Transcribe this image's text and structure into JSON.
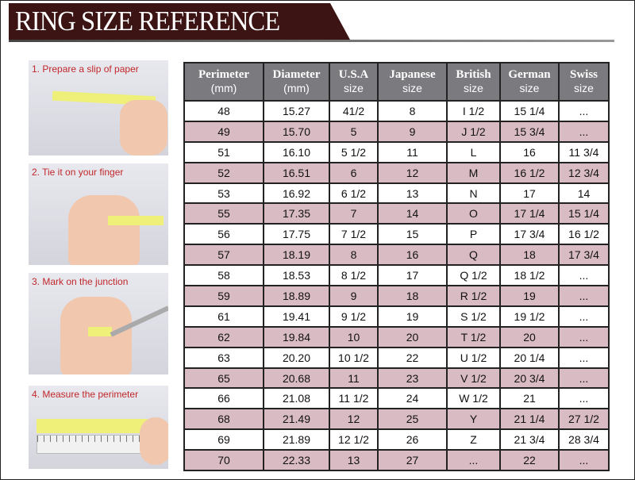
{
  "title": "RING SIZE REFERENCE",
  "steps": [
    "1. Prepare a slip of paper",
    "2. Tie it on your finger",
    "3. Mark on the junction",
    "4. Measure the perimeter"
  ],
  "headers": [
    [
      "Perimeter",
      "(mm)"
    ],
    [
      "Diameter",
      "(mm)"
    ],
    [
      "U.S.A",
      "size"
    ],
    [
      "Japanese",
      "size"
    ],
    [
      "British",
      "size"
    ],
    [
      "German",
      "size"
    ],
    [
      "Swiss",
      "size"
    ]
  ],
  "rows": [
    [
      "48",
      "15.27",
      "41/2",
      "8",
      "I 1/2",
      "15 1/4",
      "..."
    ],
    [
      "49",
      "15.70",
      "5",
      "9",
      "J 1/2",
      "15 3/4",
      "..."
    ],
    [
      "51",
      "16.10",
      "5 1/2",
      "11",
      "L",
      "16",
      "11 3/4"
    ],
    [
      "52",
      "16.51",
      "6",
      "12",
      "M",
      "16 1/2",
      "12 3/4"
    ],
    [
      "53",
      "16.92",
      "6 1/2",
      "13",
      "N",
      "17",
      "14"
    ],
    [
      "55",
      "17.35",
      "7",
      "14",
      "O",
      "17 1/4",
      "15 1/4"
    ],
    [
      "56",
      "17.75",
      "7 1/2",
      "15",
      "P",
      "17 3/4",
      "16 1/2"
    ],
    [
      "57",
      "18.19",
      "8",
      "16",
      "Q",
      "18",
      "17 3/4"
    ],
    [
      "58",
      "18.53",
      "8 1/2",
      "17",
      "Q  1/2",
      "18 1/2",
      "..."
    ],
    [
      "59",
      "18.89",
      "9",
      "18",
      "R 1/2",
      "19",
      "..."
    ],
    [
      "61",
      "19.41",
      "9 1/2",
      "19",
      "S 1/2",
      "19 1/2",
      "..."
    ],
    [
      "62",
      "19.84",
      "10",
      "20",
      "T 1/2",
      "20",
      "..."
    ],
    [
      "63",
      "20.20",
      "10 1/2",
      "22",
      "U 1/2",
      "20 1/4",
      "..."
    ],
    [
      "65",
      "20.68",
      "11",
      "23",
      "V 1/2",
      "20 3/4",
      "..."
    ],
    [
      "66",
      "21.08",
      "11 1/2",
      "24",
      "W 1/2",
      "21",
      "..."
    ],
    [
      "68",
      "21.49",
      "12",
      "25",
      "Y",
      "21 1/4",
      "27 1/2"
    ],
    [
      "69",
      "21.89",
      "12 1/2",
      "26",
      "Z",
      "21 3/4",
      "28 3/4"
    ],
    [
      "70",
      "22.33",
      "13",
      "27",
      "...",
      "22",
      "..."
    ]
  ],
  "colors": {
    "banner": "#3c1414",
    "header": "#7b7a7f",
    "alt_row": "#d9bcc3",
    "step_label": "#c0282a"
  }
}
